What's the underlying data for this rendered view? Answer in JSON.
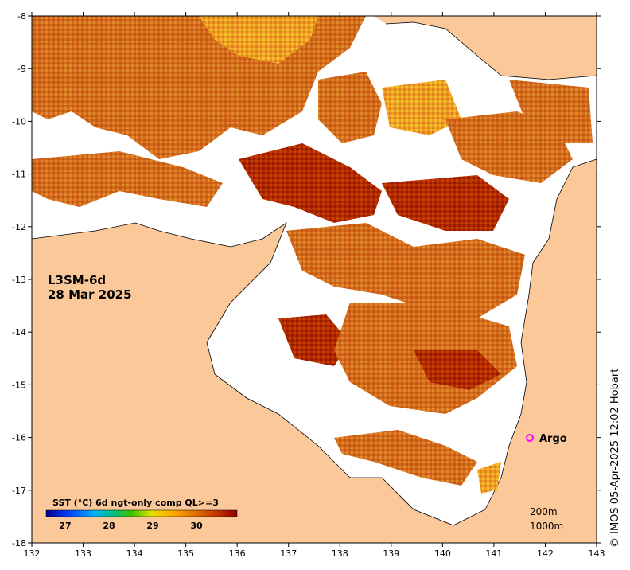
{
  "product": "L3SM-6d",
  "date": "28 Mar 2025",
  "colorbar": {
    "title": "SST (°C) 6d ngt-only comp QL>=3",
    "ticks": [
      "27",
      "28",
      "29",
      "30"
    ]
  },
  "argo": {
    "label": "Argo",
    "lon": 141.7,
    "lat": -16.0,
    "color": "#ff00ff"
  },
  "depth_labels": [
    "200m",
    "1000m"
  ],
  "credit": "© IMOS 05-Apr-2025 12:02 Hobart",
  "axes": {
    "x_ticks": [
      "132",
      "133",
      "134",
      "135",
      "136",
      "137",
      "138",
      "139",
      "140",
      "141",
      "142",
      "143"
    ],
    "y_ticks": [
      "-8",
      "-9",
      "-10",
      "-11",
      "-12",
      "-13",
      "-14",
      "-15",
      "-16",
      "-17",
      "-18"
    ],
    "lon_range": [
      132,
      143
    ],
    "lat_range": [
      -18,
      -8
    ]
  },
  "colors": {
    "land": "#fbc89a",
    "no_data": "#ffffff",
    "sst_main": "#d2691e",
    "sst_hot": "#b22000",
    "sst_cool": "#f0a020"
  }
}
